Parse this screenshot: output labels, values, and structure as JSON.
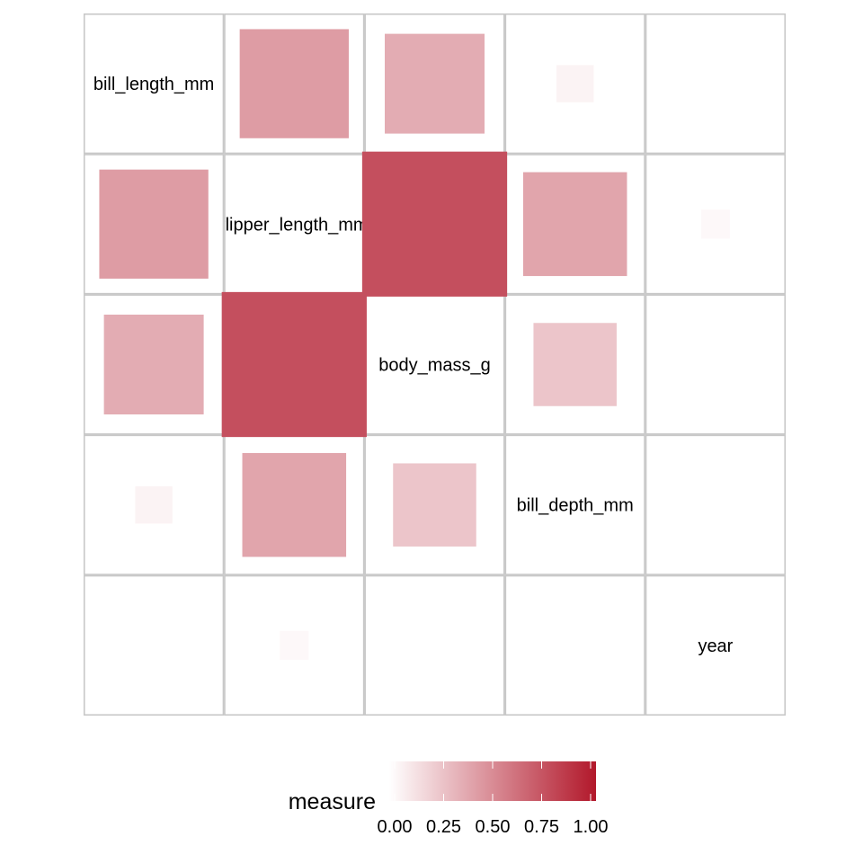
{
  "chart_data": {
    "type": "heatmap",
    "variables": [
      "bill_length_mm",
      "flipper_length_mm",
      "body_mass_g",
      "bill_depth_mm",
      "year"
    ],
    "values": [
      [
        1.0,
        0.43,
        0.36,
        0.05,
        0.0
      ],
      [
        0.43,
        1.0,
        0.76,
        0.39,
        0.03
      ],
      [
        0.36,
        0.76,
        1.0,
        0.25,
        0.0
      ],
      [
        0.05,
        0.39,
        0.25,
        1.0,
        0.0
      ],
      [
        0.0,
        0.03,
        0.0,
        0.0,
        1.0
      ]
    ],
    "legend": {
      "title": "measure",
      "ticks": [
        "0.00",
        "0.25",
        "0.50",
        "0.75",
        "1.00"
      ],
      "tick_values": [
        0,
        0.25,
        0.5,
        0.75,
        1
      ],
      "range": [
        0,
        1
      ],
      "low_color": "#ffffff",
      "high_color": "#b2182b",
      "placement": "bottom"
    }
  }
}
